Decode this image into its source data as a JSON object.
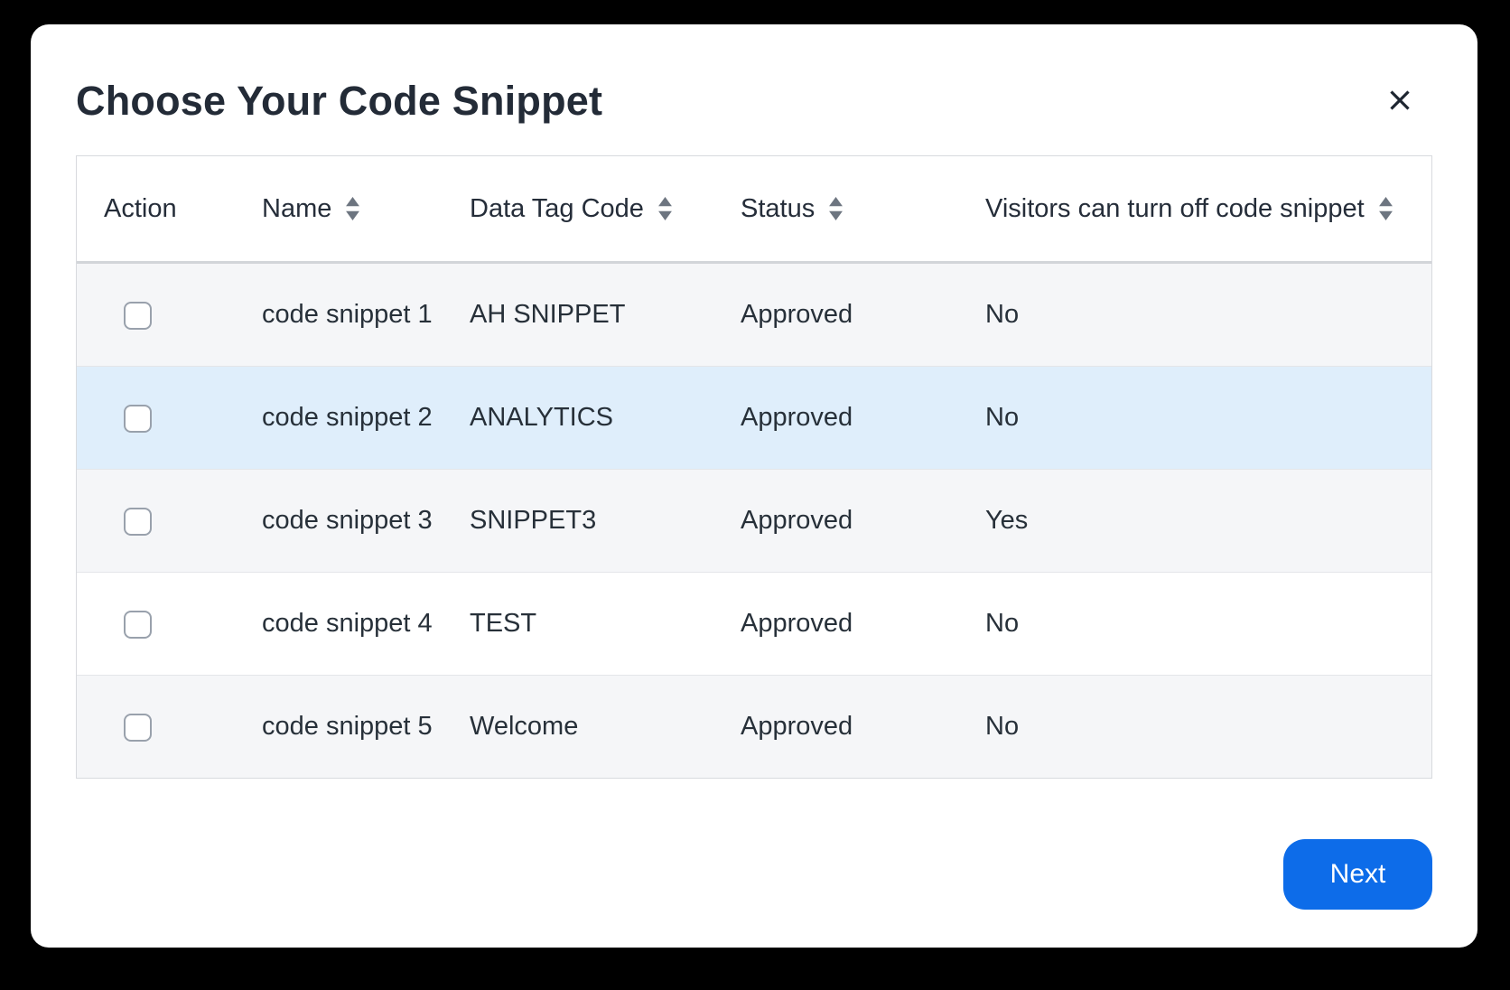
{
  "modal": {
    "title": "Choose Your Code Snippet"
  },
  "table": {
    "columns": [
      {
        "label": "Action",
        "sortable": false
      },
      {
        "label": "Name",
        "sortable": true
      },
      {
        "label": "Data Tag Code",
        "sortable": true
      },
      {
        "label": "Status",
        "sortable": true
      },
      {
        "label": "Visitors can turn off code snippet",
        "sortable": true
      }
    ],
    "rows": [
      {
        "checked": false,
        "name": "code snippet 1",
        "data_tag_code": "AH SNIPPET",
        "status": "Approved",
        "visitors_can_turn_off": "No",
        "highlighted": false
      },
      {
        "checked": false,
        "name": "code snippet 2",
        "data_tag_code": "ANALYTICS",
        "status": "Approved",
        "visitors_can_turn_off": "No",
        "highlighted": true
      },
      {
        "checked": false,
        "name": "code snippet 3",
        "data_tag_code": "SNIPPET3",
        "status": "Approved",
        "visitors_can_turn_off": "Yes",
        "highlighted": false
      },
      {
        "checked": false,
        "name": "code snippet 4",
        "data_tag_code": "TEST",
        "status": "Approved",
        "visitors_can_turn_off": "No",
        "highlighted": false
      },
      {
        "checked": false,
        "name": "code snippet 5",
        "data_tag_code": "Welcome",
        "status": "Approved",
        "visitors_can_turn_off": "No",
        "highlighted": false
      }
    ]
  },
  "footer": {
    "next_label": "Next"
  },
  "colors": {
    "accent": "#0d6ce9",
    "row_highlight": "#dfeefb",
    "row_stripe": "#f5f6f8",
    "title_text": "#232b37",
    "cell_text": "#273039",
    "sort_icon": "#6d7580"
  }
}
